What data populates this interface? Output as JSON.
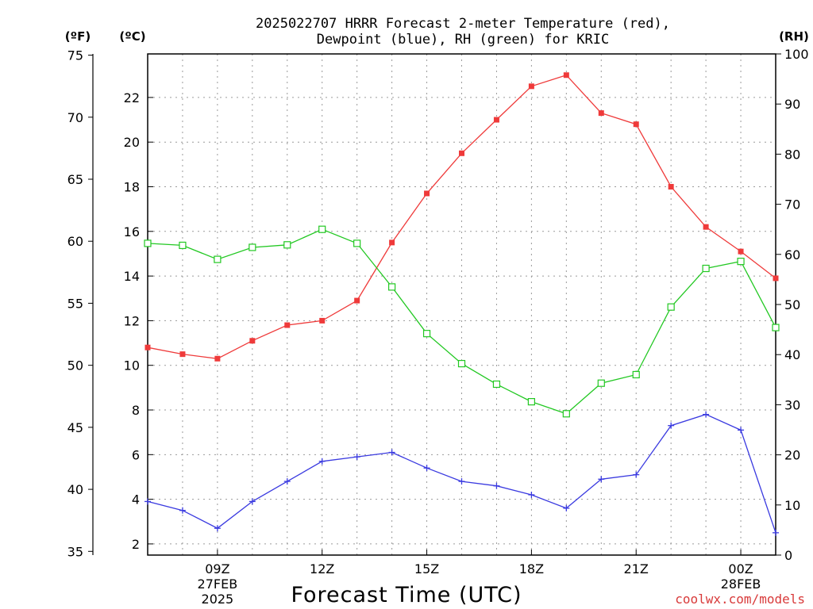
{
  "chart_data": {
    "type": "line",
    "title_line1": "2025022707 HRRR Forecast 2-meter Temperature (red),",
    "title_line2": "Dewpoint (blue), RH (green) for KRIC",
    "xlabel": "Forecast Time (UTC)",
    "y_left_outer_label": "(ºF)",
    "y_left_inner_label": "(ºC)",
    "y_right_label": "(RH)",
    "watermark": "coolwx.com/models",
    "x_ticks": [
      {
        "hour": 9,
        "label": "09Z",
        "sub1": "27FEB",
        "sub2": "2025"
      },
      {
        "hour": 12,
        "label": "12Z",
        "sub1": "",
        "sub2": ""
      },
      {
        "hour": 15,
        "label": "15Z",
        "sub1": "",
        "sub2": ""
      },
      {
        "hour": 18,
        "label": "18Z",
        "sub1": "",
        "sub2": ""
      },
      {
        "hour": 21,
        "label": "21Z",
        "sub1": "",
        "sub2": ""
      },
      {
        "hour": 24,
        "label": "00Z",
        "sub1": "28FEB",
        "sub2": ""
      }
    ],
    "x_range": [
      7,
      25
    ],
    "hours": [
      7,
      8,
      9,
      10,
      11,
      12,
      13,
      14,
      15,
      16,
      17,
      18,
      19,
      20,
      21,
      22,
      23,
      24,
      25
    ],
    "ylim_c": [
      1.5,
      23.95
    ],
    "ylim_f": [
      34.7,
      75.1
    ],
    "ylim_rh": [
      0,
      100
    ],
    "y_ticks_c": [
      2,
      4,
      6,
      8,
      10,
      12,
      14,
      16,
      18,
      20,
      22
    ],
    "y_ticks_f": [
      35,
      40,
      45,
      50,
      55,
      60,
      65,
      70,
      75
    ],
    "y_ticks_rh": [
      0,
      10,
      20,
      30,
      40,
      50,
      60,
      70,
      80,
      90,
      100
    ],
    "colors": {
      "temperature": "#ef3a3a",
      "dewpoint": "#3a3ae0",
      "rh": "#22c822"
    },
    "series": [
      {
        "key": "temperature",
        "unit": "C",
        "values": [
          10.8,
          10.5,
          10.3,
          11.1,
          11.8,
          12.0,
          12.9,
          15.5,
          17.7,
          19.5,
          21.0,
          22.5,
          23.0,
          21.3,
          20.8,
          18.0,
          16.2,
          15.1,
          13.9
        ]
      },
      {
        "key": "dewpoint",
        "unit": "C",
        "values": [
          3.9,
          3.5,
          2.7,
          3.9,
          4.8,
          5.7,
          5.9,
          6.1,
          5.4,
          4.8,
          4.6,
          4.2,
          3.6,
          4.9,
          5.1,
          7.3,
          7.8,
          7.1,
          2.5
        ]
      },
      {
        "key": "rh",
        "unit": "%",
        "values": [
          62.2,
          61.8,
          59.0,
          61.4,
          61.9,
          65.0,
          62.2,
          53.5,
          44.2,
          38.2,
          34.1,
          30.6,
          28.2,
          34.3,
          36.0,
          49.5,
          57.2,
          58.6,
          45.4
        ]
      }
    ]
  }
}
